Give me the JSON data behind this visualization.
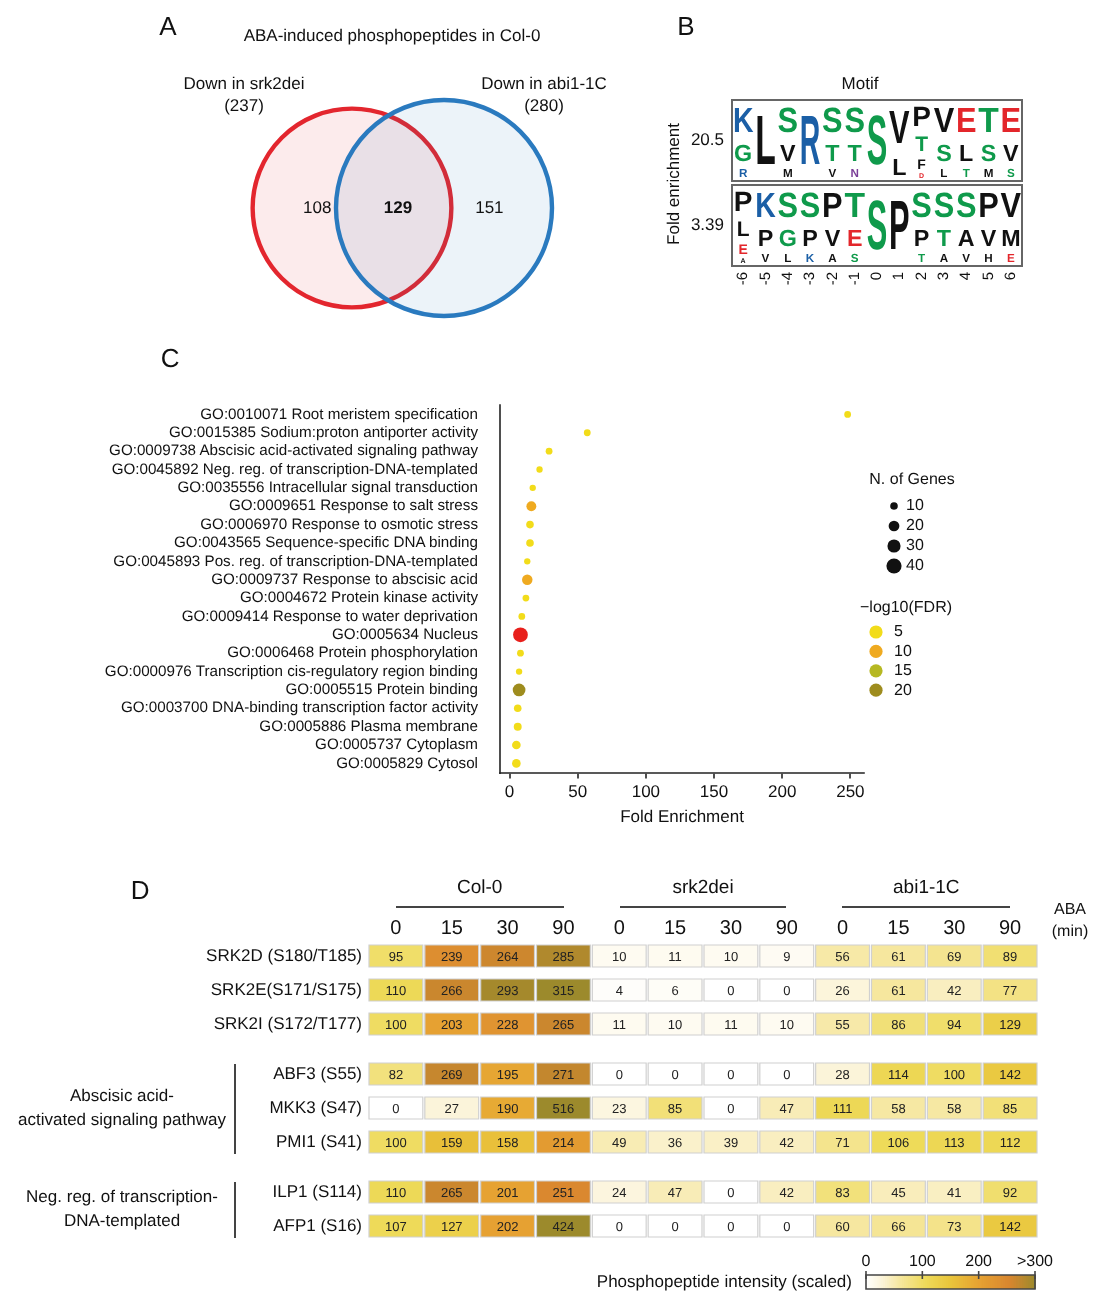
{
  "chart_data": [
    {
      "type": "other",
      "title": "ABA-induced phosphopeptides in Col-0",
      "categories": [
        "Down in srk2dei",
        "Down in abi1-1C"
      ],
      "values": [
        237,
        280
      ],
      "value_labels": [
        "(237)",
        "(280)"
      ],
      "colors": [
        "#e3262e",
        "#2a7abf"
      ],
      "annotations": [
        "A",
        "108",
        "129",
        "151"
      ]
    },
    {
      "type": "heatmap",
      "title": "Motif",
      "ylabel": "Fold enrichment",
      "categories": [
        "-6",
        "-5",
        "-4",
        "-3",
        "-2",
        "-1",
        "0",
        "1",
        "2",
        "3",
        "4",
        "5",
        "6"
      ],
      "y_categories": [
        "20.5",
        "3.39"
      ],
      "cells": [
        [
          null,
          null,
          null,
          null,
          null,
          null,
          null,
          null,
          null,
          null,
          null,
          null,
          null
        ],
        [
          null,
          null,
          null,
          null,
          null,
          null,
          null,
          null,
          null,
          null,
          null,
          null,
          null
        ]
      ],
      "cell_labels": [
        [
          [
            "K",
            "G",
            "R"
          ],
          [
            "L"
          ],
          [
            "S",
            "V",
            "M"
          ],
          [
            "R"
          ],
          [
            "S",
            "T",
            "V"
          ],
          [
            "S",
            "T",
            "N"
          ],
          [
            "S"
          ],
          [
            "V",
            "L"
          ],
          [
            "P",
            "T",
            "F",
            "D"
          ],
          [
            "V",
            "S",
            "L"
          ],
          [
            "E",
            "L",
            "T"
          ],
          [
            "T",
            "S",
            "M"
          ],
          [
            "E",
            "V",
            "S"
          ]
        ],
        [
          [
            "P",
            "L",
            "E",
            "A"
          ],
          [
            "K",
            "P",
            "V"
          ],
          [
            "S",
            "G",
            "L"
          ],
          [
            "S",
            "P",
            "K"
          ],
          [
            "P",
            "V",
            "A"
          ],
          [
            "T",
            "E",
            "S"
          ],
          [
            "S"
          ],
          [
            "P"
          ],
          [
            "S",
            "P",
            "T"
          ],
          [
            "S",
            "T",
            "A"
          ],
          [
            "S",
            "A",
            "V"
          ],
          [
            "P",
            "V",
            "H"
          ],
          [
            "V",
            "M",
            "E"
          ]
        ]
      ],
      "colors": [
        [
          [
            "#1b5fa6",
            "#0f9a4b",
            "#1b5fa6"
          ],
          [
            "#111111"
          ],
          [
            "#0f9a4b",
            "#111111",
            "#111111"
          ],
          [
            "#1b5fa6"
          ],
          [
            "#0f9a4b",
            "#0f9a4b",
            "#111111"
          ],
          [
            "#0f9a4b",
            "#0f9a4b",
            "#7b3f98"
          ],
          [
            "#0f9a4b"
          ],
          [
            "#111111",
            "#111111"
          ],
          [
            "#111111",
            "#0f9a4b",
            "#111111",
            "#e3262b"
          ],
          [
            "#111111",
            "#0f9a4b",
            "#111111"
          ],
          [
            "#e3262b",
            "#111111",
            "#0f9a4b"
          ],
          [
            "#0f9a4b",
            "#0f9a4b",
            "#111111"
          ],
          [
            "#e3262b",
            "#111111",
            "#0f9a4b"
          ]
        ],
        [
          [
            "#111111",
            "#111111",
            "#e3262b",
            "#111111"
          ],
          [
            "#1b5fa6",
            "#111111",
            "#111111"
          ],
          [
            "#0f9a4b",
            "#0f9a4b",
            "#111111"
          ],
          [
            "#0f9a4b",
            "#111111",
            "#1b5fa6"
          ],
          [
            "#111111",
            "#111111",
            "#111111"
          ],
          [
            "#0f9a4b",
            "#e3262b",
            "#0f9a4b"
          ],
          [
            "#0f9a4b"
          ],
          [
            "#111111"
          ],
          [
            "#0f9a4b",
            "#111111",
            "#0f9a4b"
          ],
          [
            "#0f9a4b",
            "#0f9a4b",
            "#111111"
          ],
          [
            "#0f9a4b",
            "#111111",
            "#111111"
          ],
          [
            "#111111",
            "#111111",
            "#111111"
          ],
          [
            "#111111",
            "#111111",
            "#e3262b"
          ]
        ]
      ],
      "annotations": [
        "B"
      ]
    },
    {
      "type": "bubble",
      "orientation": "horizontal",
      "categories": [
        "GO:0010071 Root meristem specification",
        "GO:0015385 Sodium:proton antiporter activity",
        "GO:0009738 Abscisic acid-activated signaling pathway",
        "GO:0045892 Neg. reg. of transcription-DNA-templated",
        "GO:0035556 Intracellular signal transduction",
        "GO:0009651 Response to salt stress",
        "GO:0006970 Response to osmotic stress",
        "GO:0043565 Sequence-specific DNA binding",
        "GO:0045893 Pos. reg. of transcription-DNA-templated",
        "GO:0009737 Response to abscisic acid",
        "GO:0004672 Protein kinase activity",
        "GO:0009414 Response to water deprivation",
        "GO:0005634 Nucleus",
        "GO:0006468 Protein phosphorylation",
        "GO:0000976 Transcription cis-regulatory region binding",
        "GO:0005515 Protein binding",
        "GO:0003700 DNA-binding transcription factor activity",
        "GO:0005886 Plasma membrane",
        "GO:0005737 Cytoplasm",
        "GO:0005829 Cytosol"
      ],
      "series": [
        {
          "name": "5",
          "color": "#f2dc1a",
          "values": [
            248,
            57,
            29,
            22,
            17,
            null,
            15,
            15,
            13,
            null,
            12,
            9,
            null,
            8,
            7,
            null,
            6,
            6,
            5,
            5
          ],
          "sizes": [
            8,
            8,
            8,
            7,
            7,
            null,
            10,
            10,
            7,
            null,
            8,
            8,
            null,
            8,
            7,
            null,
            10,
            11,
            13,
            13
          ]
        },
        {
          "name": "10",
          "color": "#efaa20",
          "values": [
            null,
            null,
            null,
            null,
            null,
            16,
            null,
            null,
            null,
            13,
            null,
            null,
            null,
            null,
            null,
            null,
            null,
            null,
            null,
            null
          ],
          "sizes": [
            null,
            null,
            null,
            null,
            null,
            17,
            null,
            null,
            null,
            19,
            null,
            null,
            null,
            null,
            null,
            null,
            null,
            null,
            null,
            null
          ]
        },
        {
          "name": "15",
          "color": "#b6b822",
          "values": [
            null,
            null,
            null,
            null,
            null,
            null,
            null,
            null,
            null,
            null,
            null,
            null,
            null,
            null,
            null,
            null,
            null,
            null,
            null,
            null
          ]
        },
        {
          "name": "20",
          "color": "#9e8c1e",
          "values": [
            null,
            null,
            null,
            null,
            null,
            null,
            null,
            null,
            null,
            null,
            null,
            null,
            null,
            null,
            null,
            7,
            null,
            null,
            null,
            null
          ],
          "sizes": [
            null,
            null,
            null,
            null,
            null,
            null,
            null,
            null,
            null,
            null,
            null,
            null,
            null,
            null,
            null,
            28,
            null,
            null,
            null,
            null
          ]
        },
        {
          "color": "#e8201c",
          "values": [
            null,
            null,
            null,
            null,
            null,
            null,
            null,
            null,
            null,
            null,
            null,
            null,
            8,
            null,
            null,
            null,
            null,
            null,
            null,
            null
          ],
          "sizes": [
            null,
            null,
            null,
            null,
            null,
            null,
            null,
            null,
            null,
            null,
            null,
            null,
            38,
            null,
            null,
            null,
            null,
            null,
            null,
            null
          ]
        }
      ],
      "size_legend": [
        10,
        20,
        30,
        40
      ],
      "legend": "right",
      "legend_title": "−log10(FDR)",
      "xlim": [
        -7,
        260
      ],
      "xticks": [
        0,
        50,
        100,
        150,
        200,
        250
      ],
      "xlabel": "Fold Enrichment",
      "annotations": [
        "C",
        "N. of Genes"
      ]
    },
    {
      "type": "heatmap",
      "categories": [
        "0",
        "15",
        "30",
        "90",
        "0",
        "15",
        "30",
        "90",
        "0",
        "15",
        "30",
        "90"
      ],
      "y_categories": [
        "SRK2D (S180/T185)",
        "SRK2E(S171/S175)",
        "SRK2I (S172/T177)"
      ],
      "cells": [
        [
          95,
          239,
          264,
          285,
          10,
          11,
          10,
          9,
          56,
          61,
          69,
          89
        ],
        [
          110,
          266,
          293,
          315,
          4,
          6,
          0,
          0,
          26,
          61,
          42,
          77
        ],
        [
          100,
          203,
          228,
          265,
          11,
          10,
          11,
          10,
          55,
          86,
          94,
          129
        ]
      ],
      "data_labels": true,
      "annotations": [
        "D",
        "Col-0",
        "srk2dei",
        "abi1-1C",
        "ABA (min)"
      ]
    },
    {
      "type": "heatmap",
      "categories": [
        null,
        null,
        null,
        null,
        null,
        null,
        null,
        null,
        null,
        null,
        null,
        null
      ],
      "y_categories": [
        "ABF3 (S55)",
        "MKK3 (S47)",
        "PMI1 (S41)"
      ],
      "cells": [
        [
          82,
          269,
          195,
          271,
          0,
          0,
          0,
          0,
          28,
          114,
          100,
          142
        ],
        [
          0,
          27,
          190,
          516,
          23,
          85,
          0,
          47,
          111,
          58,
          58,
          85
        ],
        [
          100,
          159,
          158,
          214,
          49,
          36,
          39,
          42,
          71,
          106,
          113,
          112
        ]
      ],
      "ylabel": "Abscisic acid-activated signaling pathway",
      "tick_labels": "y",
      "data_labels": true
    },
    {
      "type": "heatmap",
      "categories": [
        null,
        null,
        null,
        null,
        null,
        null,
        null,
        null,
        null,
        null,
        null,
        null
      ],
      "y_categories": [
        "ILP1 (S114)",
        "AFP1 (S16)"
      ],
      "cells": [
        [
          110,
          265,
          201,
          251,
          24,
          47,
          0,
          42,
          83,
          45,
          41,
          92
        ],
        [
          107,
          127,
          202,
          424,
          0,
          0,
          0,
          0,
          60,
          66,
          73,
          142
        ]
      ],
      "ylabel": "Neg. reg. of transcription-DNA-templated",
      "tick_labels": "y",
      "data_labels": true,
      "clim": [
        0,
        300
      ],
      "cticks": [
        0,
        100,
        200,
        {
          "value": 300,
          "label": ">300"
        }
      ],
      "clabel": "Phosphopeptide intensity (scaled)"
    }
  ]
}
